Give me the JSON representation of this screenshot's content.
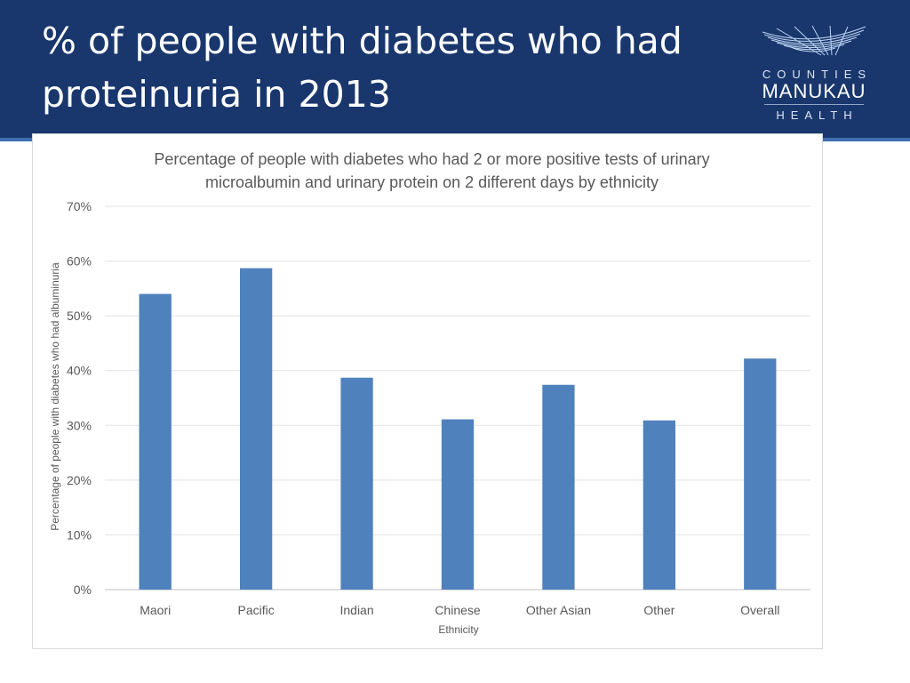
{
  "slide": {
    "title": "% of people with diabetes who had proteinuria in 2013"
  },
  "logo": {
    "line1": "COUNTIES",
    "line2": "MANUKAU",
    "line3": "HEALTH"
  },
  "colors": {
    "header": "#19376d",
    "bar": "#4f81bd"
  },
  "chart_data": {
    "type": "bar",
    "title_lines": [
      "Percentage of people with diabetes who had 2 or more positive tests of urinary",
      "microalbumin and urinary protein on 2 different days by ethnicity"
    ],
    "xlabel": "Ethnicity",
    "ylabel": "Percentage of people with diabetes  who had albuminuria",
    "categories": [
      "Maori",
      "Pacific",
      "Indian",
      "Chinese",
      "Other Asian",
      "Other",
      "Overall"
    ],
    "values": [
      0.54,
      0.587,
      0.387,
      0.311,
      0.374,
      0.309,
      0.422
    ],
    "ylim": [
      0,
      0.7
    ],
    "yticks": [
      0,
      0.1,
      0.2,
      0.3,
      0.4,
      0.5,
      0.6,
      0.7
    ],
    "ytick_labels": [
      "0%",
      "10%",
      "20%",
      "30%",
      "40%",
      "50%",
      "60%",
      "70%"
    ],
    "grid": true,
    "legend": "none"
  }
}
